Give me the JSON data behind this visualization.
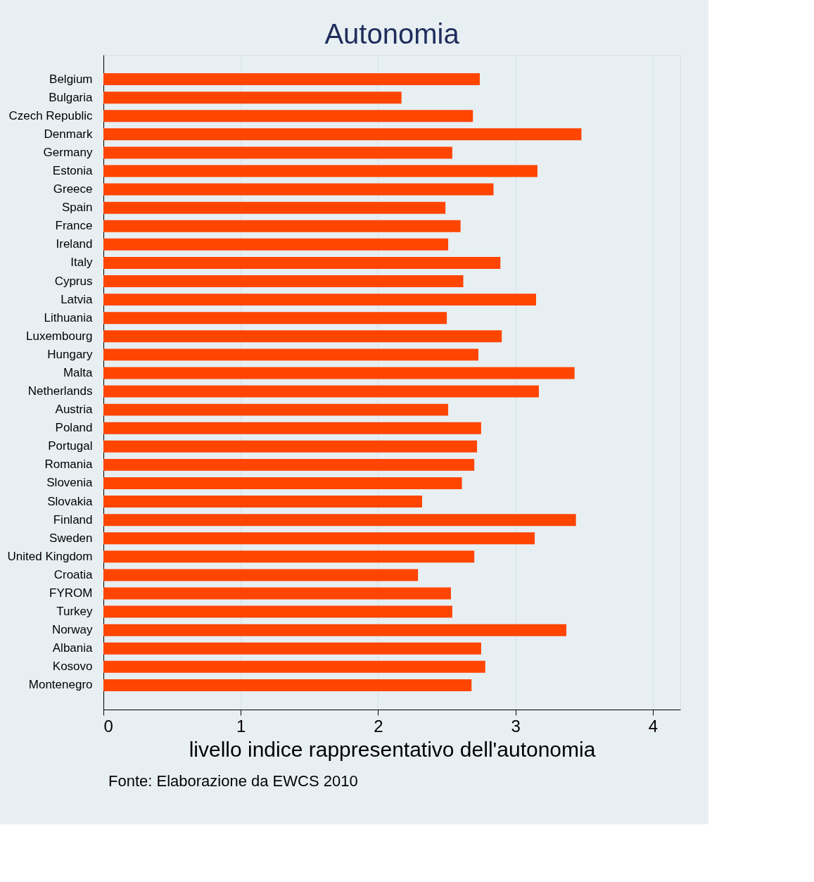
{
  "chart_data": {
    "type": "bar",
    "orientation": "horizontal",
    "title": "Autonomia",
    "xlabel": "livello indice rappresentativo dell'autonomia",
    "annotations": [
      "Fonte: Elaborazione da EWCS 2010"
    ],
    "categories": [
      "Belgium",
      "Bulgaria",
      "Czech Republic",
      "Denmark",
      "Germany",
      "Estonia",
      "Greece",
      "Spain",
      "France",
      "Ireland",
      "Italy",
      "Cyprus",
      "Latvia",
      "Lithuania",
      "Luxembourg",
      "Hungary",
      "Malta",
      "Netherlands",
      "Austria",
      "Poland",
      "Portugal",
      "Romania",
      "Slovenia",
      "Slovakia",
      "Finland",
      "Sweden",
      "United Kingdom",
      "Croatia",
      "FYROM",
      "Turkey",
      "Norway",
      "Albania",
      "Kosovo",
      "Montenegro"
    ],
    "values": [
      2.74,
      2.17,
      2.69,
      3.48,
      2.54,
      3.16,
      2.84,
      2.49,
      2.6,
      2.51,
      2.89,
      2.62,
      3.15,
      2.5,
      2.9,
      2.73,
      3.43,
      3.17,
      2.51,
      2.75,
      2.72,
      2.7,
      2.61,
      2.32,
      3.44,
      3.14,
      2.7,
      2.29,
      2.53,
      2.54,
      3.37,
      2.75,
      2.78,
      2.68
    ],
    "color": "#ff4500",
    "xlim": [
      0,
      4.2
    ],
    "xticks": [
      0,
      1,
      2,
      3,
      4
    ],
    "grid": "x"
  }
}
